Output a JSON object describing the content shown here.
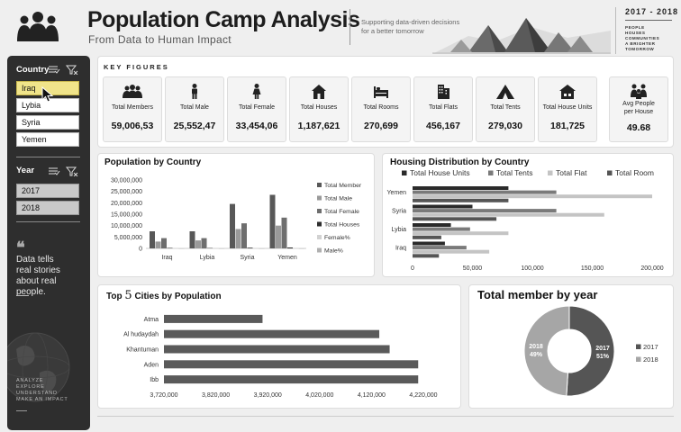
{
  "header": {
    "title": "Population Camp Analysis",
    "subtitle": "From Data to Human Impact",
    "tagline": [
      "Supporting data-driven decisions",
      "for a better tomorrow"
    ],
    "year_range": "2017 - 2018",
    "pillars": [
      "PEOPLE",
      "HOUSES",
      "COMMUNITIES",
      "A BRIGHTER TOMORROW"
    ]
  },
  "sidebar": {
    "country_label": "Country",
    "countries": [
      "Iraq",
      "Lybia",
      "Syria",
      "Yemen"
    ],
    "selected_country": "Iraq",
    "year_label": "Year",
    "years": [
      "2017",
      "2018"
    ],
    "quote": [
      "Data tells",
      "real stories",
      "about real people."
    ],
    "motto": [
      "ANALYZE",
      "EXPLORE",
      "UNDERSTAND",
      "MAKE AN IMPACT"
    ]
  },
  "key_figures": {
    "title": "KEY FIGURES",
    "cards": [
      {
        "icon": "people-group-icon",
        "label": [
          "Total Members"
        ],
        "value": "59,006,53"
      },
      {
        "icon": "male-icon",
        "label": [
          "Total Male"
        ],
        "value": "25,552,47"
      },
      {
        "icon": "female-icon",
        "label": [
          "Total Female"
        ],
        "value": "33,454,06"
      },
      {
        "icon": "house-icon",
        "label": [
          "Total Houses"
        ],
        "value": "1,187,621"
      },
      {
        "icon": "bed-icon",
        "label": [
          "Total Rooms"
        ],
        "value": "270,699"
      },
      {
        "icon": "buildings-icon",
        "label": [
          "Total Flats"
        ],
        "value": "456,167"
      },
      {
        "icon": "tent-icon",
        "label": [
          "Total Tents"
        ],
        "value": "279,030"
      },
      {
        "icon": "house-unit-icon",
        "label": [
          "Total House Units"
        ],
        "value": "181,725"
      },
      {
        "icon": "family-icon",
        "label": [
          "Avg People",
          "per House"
        ],
        "value": "49.68"
      }
    ]
  },
  "chart_data": [
    {
      "type": "bar",
      "title": "Population by Country",
      "categories": [
        "Iraq",
        "Lybia",
        "Syria",
        "Yemen"
      ],
      "series": [
        {
          "name": "Total Member",
          "values": [
            7500000,
            7500000,
            19500000,
            23500000
          ]
        },
        {
          "name": "Total Male",
          "values": [
            3000000,
            3500000,
            8500000,
            10000000
          ]
        },
        {
          "name": "Total Female",
          "values": [
            4500000,
            4500000,
            11000000,
            13500000
          ]
        },
        {
          "name": "Total Houses",
          "values": [
            200000,
            150000,
            300000,
            400000
          ]
        },
        {
          "name": "Female%",
          "values": [
            0,
            0,
            0,
            0
          ]
        },
        {
          "name": "Male%",
          "values": [
            0,
            0,
            0,
            0
          ]
        }
      ],
      "ylim": [
        0,
        30000000
      ],
      "yticks": [
        "30,000,000",
        "25,000,000",
        "20,000,000",
        "15,000,000",
        "10,000,000",
        "5,000,000",
        "0"
      ],
      "colors": [
        "#585858",
        "#9a9a9a",
        "#6e6e6e",
        "#2e2e2e",
        "#d2d2d2",
        "#b0b0b0"
      ]
    },
    {
      "type": "bar",
      "orientation": "horizontal",
      "title": "Housing Distribution by Country",
      "categories": [
        "Yemen",
        "Syria",
        "Lybia",
        "Iraq"
      ],
      "series": [
        {
          "name": "Total House Units",
          "values": [
            80000,
            50000,
            32000,
            27000
          ]
        },
        {
          "name": "Total Tents",
          "values": [
            120000,
            120000,
            48000,
            45000
          ]
        },
        {
          "name": "Total Flat",
          "values": [
            200000,
            160000,
            80000,
            64000
          ]
        },
        {
          "name": "Total Room",
          "values": [
            80000,
            70000,
            24000,
            22000
          ]
        }
      ],
      "xlim": [
        0,
        200000
      ],
      "xticks": [
        "0",
        "50,000",
        "100,000",
        "150,000",
        "200,000"
      ],
      "colors": [
        "#2a2a2a",
        "#7a7a7a",
        "#c4c4c4",
        "#555555"
      ]
    },
    {
      "type": "bar",
      "orientation": "horizontal",
      "title_prefix": "Top",
      "title_number": "5",
      "title_suffix": "Cities by Population",
      "categories": [
        "Atma",
        "Al hudaydah",
        "Khantuman",
        "Aden",
        "Ibb"
      ],
      "values": [
        3910000,
        4135000,
        4155000,
        4210000,
        4210000
      ],
      "xlim": [
        3720000,
        4220000
      ],
      "xticks": [
        "3,720,000",
        "3,820,000",
        "3,920,000",
        "4,020,000",
        "4,120,000",
        "4,220,000"
      ],
      "color": "#5a5a5a"
    },
    {
      "type": "pie",
      "donut": true,
      "title": "Total member by year",
      "labels": [
        "2017",
        "2018"
      ],
      "values": [
        51,
        49
      ],
      "slice_labels": [
        "51%",
        "49%"
      ],
      "colors": [
        "#555555",
        "#a6a6a6"
      ]
    }
  ]
}
